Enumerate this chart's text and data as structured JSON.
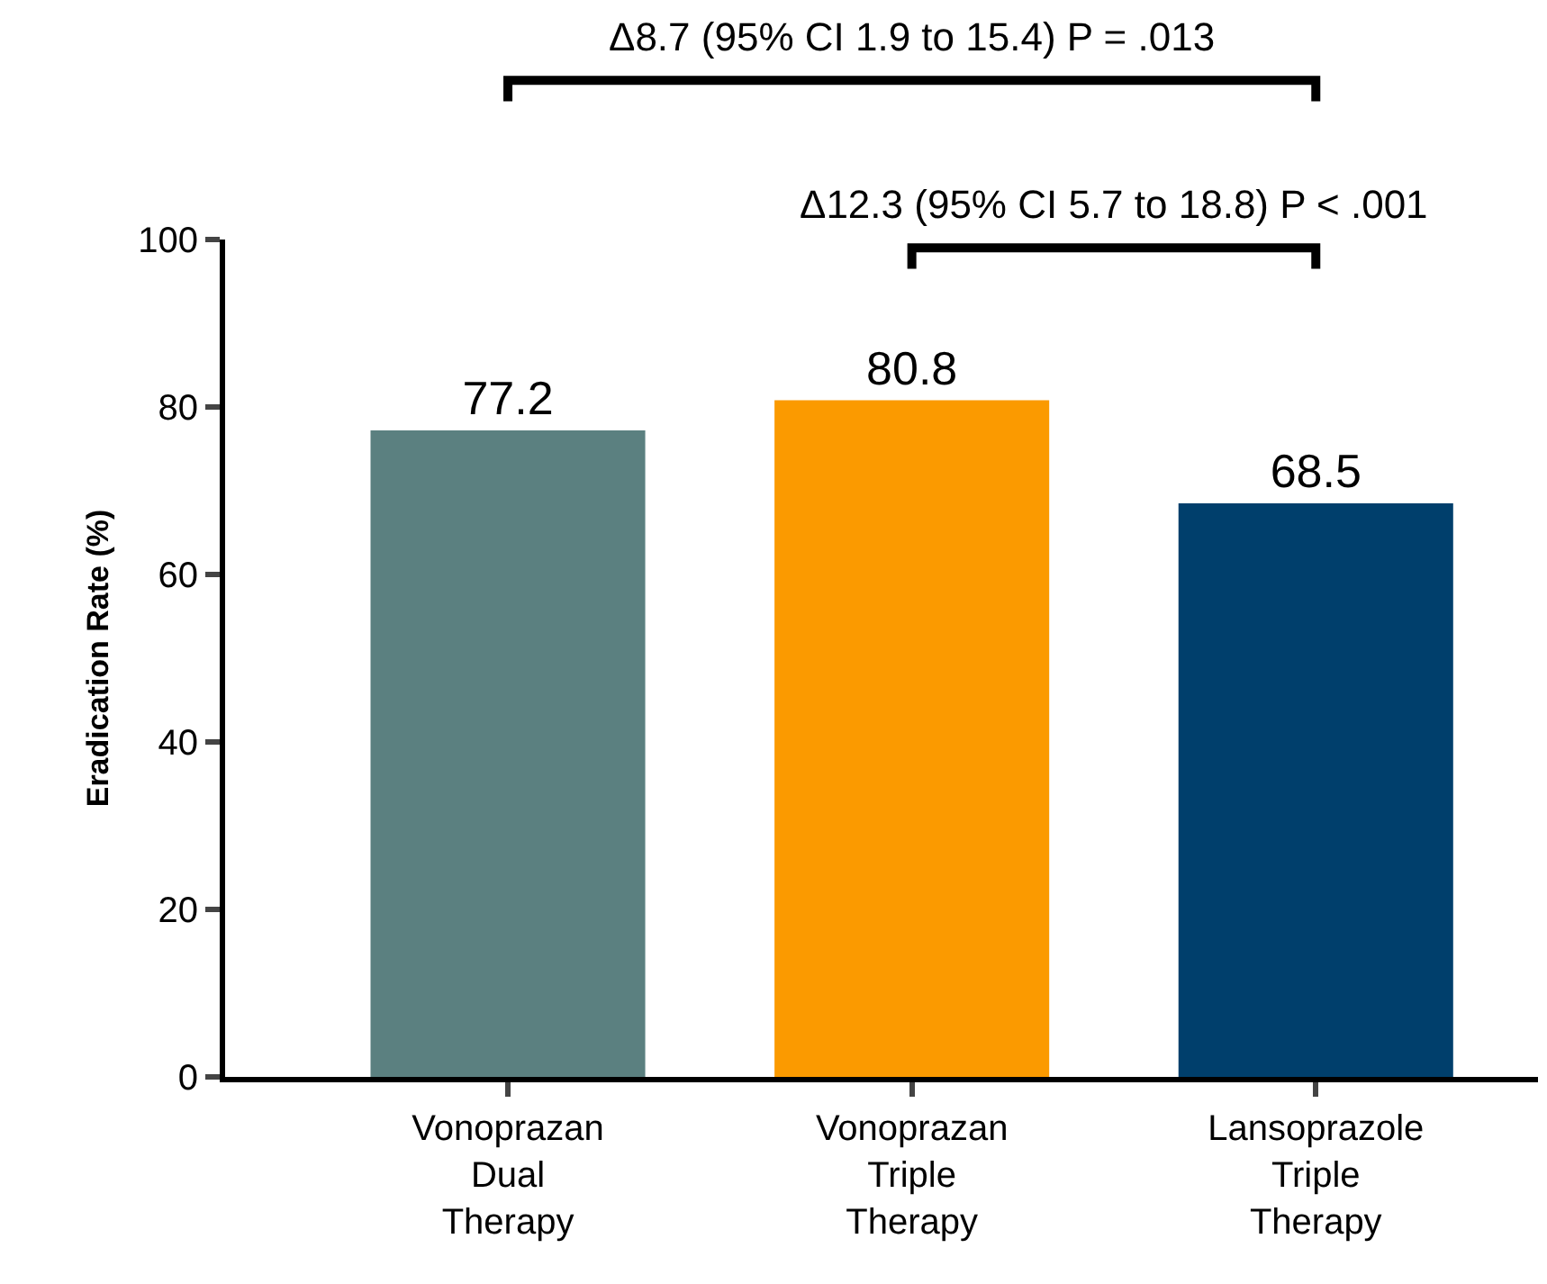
{
  "chart_data": {
    "type": "bar",
    "ylabel": "Eradication Rate (%)",
    "categories": [
      "Vonoprazan Dual Therapy",
      "Vonoprazan Triple Therapy",
      "Lansoprazole Triple Therapy"
    ],
    "values": [
      77.2,
      80.8,
      68.5
    ],
    "colors": [
      "#5b8080",
      "#fb9a00",
      "#003f6c"
    ],
    "ylim": [
      0,
      100
    ],
    "yticks": [
      0,
      20,
      40,
      60,
      80,
      100
    ],
    "grid": false,
    "data_labels": true,
    "annotations": [
      "Δ8.7 (95% CI 1.9 to 15.4) P = .013",
      "Δ12.3 (95% CI 5.7 to 18.8) P < .001"
    ]
  }
}
